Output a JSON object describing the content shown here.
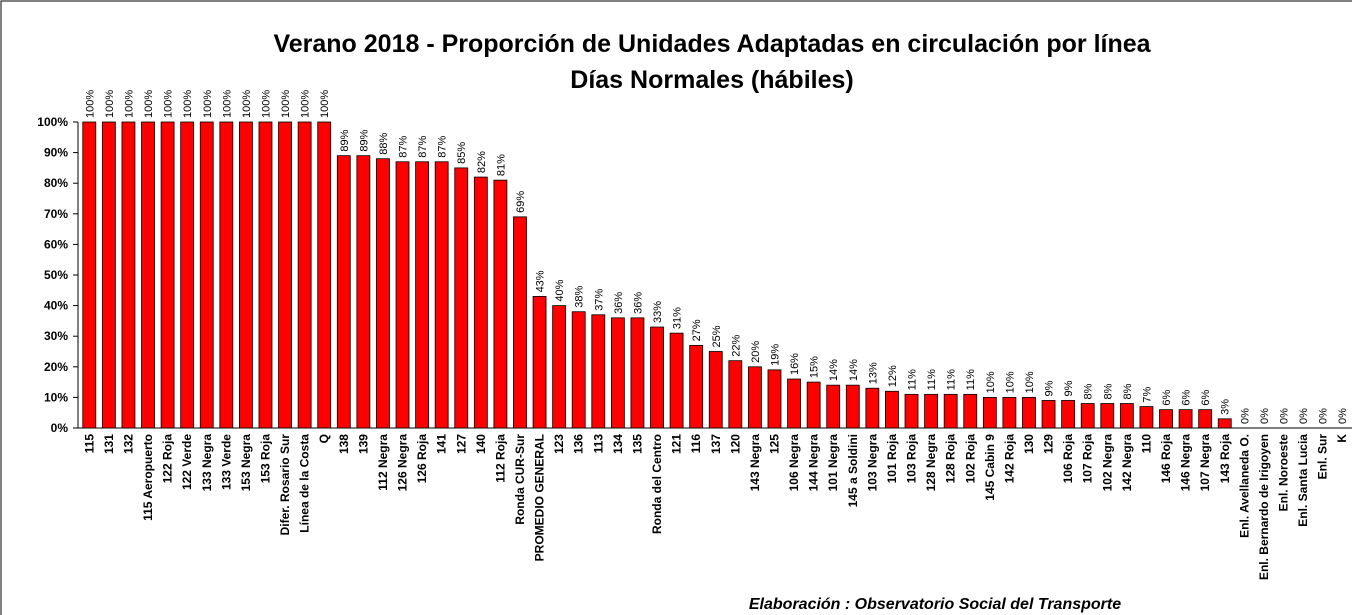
{
  "chart_data": {
    "type": "bar",
    "title": "Verano 2018 - Proporción de Unidades Adaptadas en circulación por línea",
    "subtitle": "Días Normales (hábiles)",
    "footer": "Elaboración : Observatorio Social del Transporte",
    "color": "#ff0000",
    "categories": [
      "115",
      "131",
      "132",
      "115 Aeropuerto",
      "122 Roja",
      "122 Verde",
      "133 Negra",
      "133 Verde",
      "153 Negra",
      "153 Roja",
      "Difer. Rosario Sur",
      "Línea de la Costa",
      "Q",
      "138",
      "139",
      "112 Negra",
      "126 Negra",
      "126 Roja",
      "141",
      "127",
      "140",
      "112 Roja",
      "Ronda CUR-Sur",
      "PROMEDIO GENERAL",
      "123",
      "136",
      "113",
      "134",
      "135",
      "Ronda del Centro",
      "121",
      "116",
      "137",
      "120",
      "143 Negra",
      "125",
      "106 Negra",
      "144 Negra",
      "101 Negra",
      "145 a Soldini",
      "103 Negra",
      "101 Roja",
      "103 Roja",
      "128 Negra",
      "128 Roja",
      "102 Roja",
      "145 Cabin 9",
      "142 Roja",
      "130",
      "129",
      "106 Roja",
      "107 Roja",
      "102 Negra",
      "142 Negra",
      "110",
      "146 Roja",
      "146 Negra",
      "107 Negra",
      "143 Roja",
      "Enl. Avellaneda O.",
      "Enl. Bernardo de Irigoyen",
      "Enl. Noroeste",
      "Enl. Santa Lucia",
      "Enl. Sur",
      "K"
    ],
    "values": [
      100,
      100,
      100,
      100,
      100,
      100,
      100,
      100,
      100,
      100,
      100,
      100,
      100,
      89,
      89,
      88,
      87,
      87,
      87,
      85,
      82,
      81,
      69,
      43,
      40,
      38,
      37,
      36,
      36,
      33,
      31,
      27,
      25,
      22,
      20,
      19,
      16,
      15,
      14,
      14,
      13,
      12,
      11,
      11,
      11,
      11,
      10,
      10,
      10,
      9,
      9,
      8,
      8,
      8,
      7,
      6,
      6,
      6,
      3,
      0,
      0,
      0,
      0,
      0,
      0
    ],
    "value_labels": [
      "100%",
      "100%",
      "100%",
      "100%",
      "100%",
      "100%",
      "100%",
      "100%",
      "100%",
      "100%",
      "100%",
      "100%",
      "100%",
      "89%",
      "89%",
      "88%",
      "87%",
      "87%",
      "87%",
      "85%",
      "82%",
      "81%",
      "69%",
      "43%",
      "40%",
      "38%",
      "37%",
      "36%",
      "36%",
      "33%",
      "31%",
      "27%",
      "25%",
      "22%",
      "20%",
      "19%",
      "16%",
      "15%",
      "14%",
      "14%",
      "13%",
      "12%",
      "11%",
      "11%",
      "11%",
      "11%",
      "10%",
      "10%",
      "10%",
      "9%",
      "9%",
      "8%",
      "8%",
      "8%",
      "7%",
      "6%",
      "6%",
      "6%",
      "3%",
      "0%",
      "0%",
      "0%",
      "0%",
      "0%",
      "0%"
    ],
    "ylim": [
      0,
      100
    ],
    "yticks": [
      {
        "value": 0,
        "label": "0%"
      },
      {
        "value": 10,
        "label": "10%"
      },
      {
        "value": 20,
        "label": "20%"
      },
      {
        "value": 30,
        "label": "30%"
      },
      {
        "value": 40,
        "label": "40%"
      },
      {
        "value": 50,
        "label": "50%"
      },
      {
        "value": 60,
        "label": "60%"
      },
      {
        "value": 70,
        "label": "70%"
      },
      {
        "value": 80,
        "label": "80%"
      },
      {
        "value": 90,
        "label": "90%"
      },
      {
        "value": 100,
        "label": "100%"
      }
    ],
    "grid": false
  }
}
